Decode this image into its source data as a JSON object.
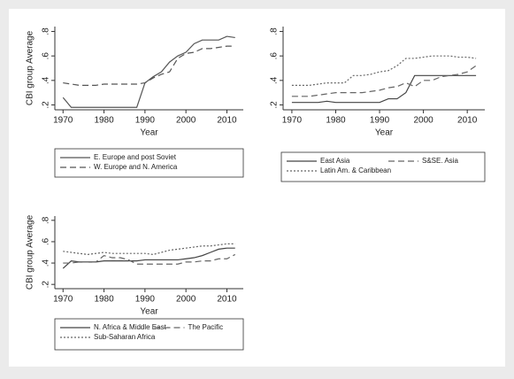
{
  "chart_data": [
    {
      "type": "line",
      "y_label": "CBI group Average",
      "x_label": "Year",
      "x": [
        1970,
        1972,
        1974,
        1976,
        1978,
        1980,
        1982,
        1984,
        1986,
        1988,
        1990,
        1992,
        1994,
        1996,
        1998,
        2000,
        2002,
        2004,
        2006,
        2008,
        2010,
        2012
      ],
      "xlim": [
        1968,
        2014
      ],
      "xticks": [
        1970,
        1980,
        1990,
        2000,
        2010
      ],
      "ylim": [
        0.16,
        0.84
      ],
      "yticks": [
        {
          "value": 0.2,
          "label": ".2"
        },
        {
          "value": 0.4,
          "label": ".4"
        },
        {
          "value": 0.6,
          "label": ".6"
        },
        {
          "value": 0.8,
          "label": ".8"
        }
      ],
      "legend_columns": 1,
      "series": [
        {
          "name": "E. Europe and post Soviet",
          "color": "#555555",
          "style": "solid",
          "values": [
            0.26,
            0.18,
            0.18,
            0.18,
            0.18,
            0.18,
            0.18,
            0.18,
            0.18,
            0.18,
            0.38,
            0.43,
            0.47,
            0.55,
            0.6,
            0.63,
            0.7,
            0.73,
            0.73,
            0.73,
            0.76,
            0.75
          ]
        },
        {
          "name": "W. Europe and N. America",
          "color": "#555555",
          "style": "dash",
          "values": [
            0.38,
            0.37,
            0.36,
            0.36,
            0.36,
            0.37,
            0.37,
            0.37,
            0.37,
            0.37,
            0.38,
            0.42,
            0.45,
            0.47,
            0.58,
            0.62,
            0.63,
            0.66,
            0.66,
            0.67,
            0.68,
            0.68
          ]
        }
      ]
    },
    {
      "type": "line",
      "x_label": "Year",
      "x": [
        1970,
        1972,
        1974,
        1976,
        1978,
        1980,
        1982,
        1984,
        1986,
        1988,
        1990,
        1992,
        1994,
        1996,
        1998,
        2000,
        2002,
        2004,
        2006,
        2008,
        2010,
        2012
      ],
      "xlim": [
        1968,
        2014
      ],
      "xticks": [
        1970,
        1980,
        1990,
        2000,
        2010
      ],
      "ylim": [
        0.16,
        0.84
      ],
      "yticks": [
        {
          "value": 0.2,
          "label": ".2"
        },
        {
          "value": 0.4,
          "label": ".4"
        },
        {
          "value": 0.6,
          "label": ".6"
        },
        {
          "value": 0.8,
          "label": ".8"
        }
      ],
      "legend_columns": 2,
      "series": [
        {
          "name": "East Asia",
          "color": "#444444",
          "style": "solid",
          "values": [
            0.22,
            0.22,
            0.22,
            0.22,
            0.23,
            0.22,
            0.22,
            0.22,
            0.22,
            0.22,
            0.22,
            0.25,
            0.25,
            0.3,
            0.44,
            0.44,
            0.44,
            0.44,
            0.44,
            0.44,
            0.44,
            0.44
          ]
        },
        {
          "name": "S&SE. Asia",
          "color": "#666666",
          "style": "dash",
          "values": [
            0.27,
            0.27,
            0.27,
            0.28,
            0.29,
            0.3,
            0.3,
            0.3,
            0.3,
            0.31,
            0.32,
            0.34,
            0.35,
            0.38,
            0.35,
            0.4,
            0.4,
            0.43,
            0.44,
            0.45,
            0.47,
            0.52
          ]
        },
        {
          "name": "Latin Am. & Caribbean",
          "color": "#666666",
          "style": "dot",
          "values": [
            0.36,
            0.36,
            0.36,
            0.37,
            0.38,
            0.38,
            0.38,
            0.44,
            0.44,
            0.45,
            0.47,
            0.48,
            0.52,
            0.58,
            0.58,
            0.59,
            0.6,
            0.6,
            0.6,
            0.59,
            0.59,
            0.58
          ]
        }
      ]
    },
    {
      "type": "line",
      "y_label": "CBI group Average",
      "x_label": "Year",
      "x": [
        1970,
        1972,
        1974,
        1976,
        1978,
        1980,
        1982,
        1984,
        1986,
        1988,
        1990,
        1992,
        1994,
        1996,
        1998,
        2000,
        2002,
        2004,
        2006,
        2008,
        2010,
        2012
      ],
      "xlim": [
        1968,
        2014
      ],
      "xticks": [
        1970,
        1980,
        1990,
        2000,
        2010
      ],
      "ylim": [
        0.16,
        0.84
      ],
      "yticks": [
        {
          "value": 0.2,
          "label": ".2"
        },
        {
          "value": 0.4,
          "label": ".4"
        },
        {
          "value": 0.6,
          "label": ".6"
        },
        {
          "value": 0.8,
          "label": ".8"
        }
      ],
      "legend_columns": 2,
      "series": [
        {
          "name": "N. Africa & Middle East",
          "color": "#444444",
          "style": "solid",
          "values": [
            0.35,
            0.42,
            0.41,
            0.41,
            0.41,
            0.42,
            0.42,
            0.42,
            0.42,
            0.42,
            0.43,
            0.43,
            0.43,
            0.43,
            0.43,
            0.44,
            0.45,
            0.47,
            0.5,
            0.53,
            0.54,
            0.54
          ]
        },
        {
          "name": "The Pacific",
          "color": "#666666",
          "style": "dash",
          "values": [
            0.4,
            0.4,
            0.41,
            0.41,
            0.41,
            0.47,
            0.45,
            0.45,
            0.43,
            0.39,
            0.39,
            0.39,
            0.39,
            0.39,
            0.39,
            0.41,
            0.41,
            0.42,
            0.42,
            0.44,
            0.44,
            0.48
          ]
        },
        {
          "name": "Sub-Saharan Africa",
          "color": "#666666",
          "style": "dot",
          "values": [
            0.51,
            0.5,
            0.49,
            0.48,
            0.49,
            0.5,
            0.49,
            0.49,
            0.49,
            0.49,
            0.49,
            0.48,
            0.5,
            0.52,
            0.53,
            0.54,
            0.55,
            0.56,
            0.56,
            0.57,
            0.58,
            0.58
          ]
        }
      ]
    }
  ]
}
